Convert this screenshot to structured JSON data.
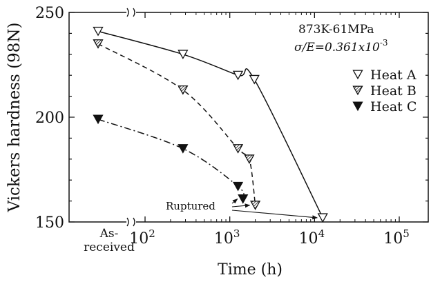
{
  "chart_data": {
    "type": "line",
    "xlabel": "Time (h)",
    "ylabel": "Vickers hardness (98N)",
    "x_scale": "log",
    "x_ticks": [
      {
        "label": "10",
        "exp": "2",
        "value": 100
      },
      {
        "label": "10",
        "exp": "3",
        "value": 1000
      },
      {
        "label": "10",
        "exp": "4",
        "value": 10000
      },
      {
        "label": "10",
        "exp": "5",
        "value": 100000
      }
    ],
    "as_received_label_1": "As-",
    "as_received_label_2": "received",
    "ylim": [
      150,
      250
    ],
    "y_ticks": [
      150,
      200,
      250
    ],
    "condition_line1": "873K-61MPa",
    "condition_line2": "σ/E=0.361x10",
    "condition_line2_exp": "-3",
    "legend_position": "right",
    "annotation": "Ruptured",
    "series": [
      {
        "name": "Heat A",
        "marker": "open-triangle-down",
        "line": "solid",
        "points": [
          {
            "x": "As-received",
            "y": 241
          },
          {
            "x": 280,
            "y": 230
          },
          {
            "x": 1250,
            "y": 220
          },
          {
            "x": 1950,
            "y": 218
          },
          {
            "x": 12500,
            "y": 152
          }
        ],
        "ruptured_at": 12500
      },
      {
        "name": "Heat B",
        "marker": "hatched-triangle-down",
        "line": "dashed",
        "points": [
          {
            "x": "As-received",
            "y": 235
          },
          {
            "x": 280,
            "y": 213
          },
          {
            "x": 1250,
            "y": 185
          },
          {
            "x": 1700,
            "y": 180
          },
          {
            "x": 2000,
            "y": 158
          }
        ],
        "ruptured_at": 2000
      },
      {
        "name": "Heat C",
        "marker": "filled-triangle-down",
        "line": "dash-dot",
        "points": [
          {
            "x": "As-received",
            "y": 199
          },
          {
            "x": 280,
            "y": 185
          },
          {
            "x": 1250,
            "y": 167
          },
          {
            "x": 1430,
            "y": 161
          }
        ],
        "ruptured_at": 1430
      }
    ]
  }
}
